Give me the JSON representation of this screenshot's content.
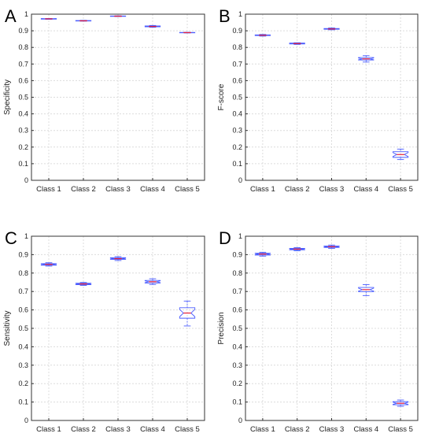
{
  "chart_data": [
    {
      "panel_letter": "A",
      "type": "box",
      "ylabel": "Specificity",
      "xlabel": "",
      "categories": [
        "Class 1",
        "Class 2",
        "Class 3",
        "Class 4",
        "Class 5"
      ],
      "ylim": [
        0,
        1
      ],
      "yticks": [
        "0",
        "0.1",
        "0.2",
        "0.3",
        "0.4",
        "0.5",
        "0.6",
        "0.7",
        "0.8",
        "0.9",
        "1"
      ],
      "grid": true,
      "boxes": [
        {
          "min": 0.969,
          "q1": 0.97,
          "median": 0.972,
          "q3": 0.973,
          "max": 0.974
        },
        {
          "min": 0.958,
          "q1": 0.959,
          "median": 0.96,
          "q3": 0.962,
          "max": 0.963
        },
        {
          "min": 0.986,
          "q1": 0.987,
          "median": 0.988,
          "q3": 0.989,
          "max": 0.99
        },
        {
          "min": 0.921,
          "q1": 0.924,
          "median": 0.926,
          "q3": 0.929,
          "max": 0.932
        },
        {
          "min": 0.887,
          "q1": 0.888,
          "median": 0.889,
          "q3": 0.89,
          "max": 0.891
        }
      ]
    },
    {
      "panel_letter": "B",
      "type": "box",
      "ylabel": "F-score",
      "xlabel": "",
      "categories": [
        "Class 1",
        "Class 2",
        "Class 3",
        "Class 4",
        "Class 5"
      ],
      "ylim": [
        0,
        1
      ],
      "yticks": [
        "0",
        "0.1",
        "0.2",
        "0.3",
        "0.4",
        "0.5",
        "0.6",
        "0.7",
        "0.8",
        "0.9",
        "1"
      ],
      "grid": true,
      "boxes": [
        {
          "min": 0.868,
          "q1": 0.871,
          "median": 0.873,
          "q3": 0.875,
          "max": 0.878
        },
        {
          "min": 0.818,
          "q1": 0.821,
          "median": 0.823,
          "q3": 0.826,
          "max": 0.828
        },
        {
          "min": 0.906,
          "q1": 0.909,
          "median": 0.911,
          "q3": 0.914,
          "max": 0.917
        },
        {
          "min": 0.712,
          "q1": 0.724,
          "median": 0.731,
          "q3": 0.739,
          "max": 0.75
        },
        {
          "min": 0.125,
          "q1": 0.138,
          "median": 0.155,
          "q3": 0.172,
          "max": 0.188
        }
      ]
    },
    {
      "panel_letter": "C",
      "type": "box",
      "ylabel": "Sensitivity",
      "xlabel": "",
      "categories": [
        "Class 1",
        "Class 2",
        "Class 3",
        "Class 4",
        "Class 5"
      ],
      "ylim": [
        0,
        1
      ],
      "yticks": [
        "0",
        "0.1",
        "0.2",
        "0.3",
        "0.4",
        "0.5",
        "0.6",
        "0.7",
        "0.8",
        "0.9",
        "1"
      ],
      "grid": true,
      "boxes": [
        {
          "min": 0.838,
          "q1": 0.843,
          "median": 0.847,
          "q3": 0.851,
          "max": 0.856
        },
        {
          "min": 0.733,
          "q1": 0.737,
          "median": 0.741,
          "q3": 0.745,
          "max": 0.749
        },
        {
          "min": 0.868,
          "q1": 0.874,
          "median": 0.878,
          "q3": 0.883,
          "max": 0.889
        },
        {
          "min": 0.738,
          "q1": 0.746,
          "median": 0.753,
          "q3": 0.76,
          "max": 0.769
        },
        {
          "min": 0.513,
          "q1": 0.555,
          "median": 0.583,
          "q3": 0.612,
          "max": 0.648
        }
      ]
    },
    {
      "panel_letter": "D",
      "type": "box",
      "ylabel": "Precision",
      "xlabel": "",
      "categories": [
        "Class 1",
        "Class 2",
        "Class 3",
        "Class 4",
        "Class 5"
      ],
      "ylim": [
        0,
        1
      ],
      "yticks": [
        "0",
        "0.1",
        "0.2",
        "0.3",
        "0.4",
        "0.5",
        "0.6",
        "0.7",
        "0.8",
        "0.9",
        "1"
      ],
      "grid": true,
      "boxes": [
        {
          "min": 0.892,
          "q1": 0.898,
          "median": 0.903,
          "q3": 0.908,
          "max": 0.913
        },
        {
          "min": 0.921,
          "q1": 0.926,
          "median": 0.93,
          "q3": 0.934,
          "max": 0.938
        },
        {
          "min": 0.934,
          "q1": 0.939,
          "median": 0.943,
          "q3": 0.947,
          "max": 0.952
        },
        {
          "min": 0.678,
          "q1": 0.699,
          "median": 0.71,
          "q3": 0.722,
          "max": 0.737
        },
        {
          "min": 0.077,
          "q1": 0.085,
          "median": 0.093,
          "q3": 0.102,
          "max": 0.111
        }
      ]
    }
  ],
  "colors": {
    "box": "#4a5cff",
    "median": "#e8203a",
    "grid": "#dcdcdc",
    "axis": "#333333",
    "text": "#222222"
  }
}
